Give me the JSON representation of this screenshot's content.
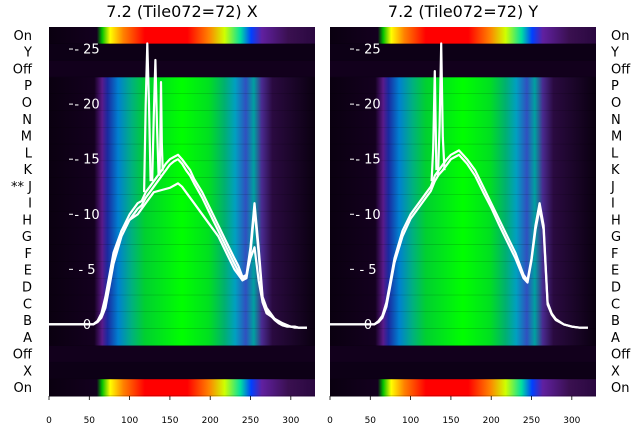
{
  "chart_data": [
    {
      "type": "heatmap",
      "title": "7.2 (Tile072=72) X",
      "xlim": [
        0,
        330
      ],
      "xticks": [
        0,
        50,
        100,
        150,
        200,
        250,
        300
      ],
      "row_labels_left": [
        "On",
        "Y",
        "Off",
        "P",
        "O",
        "N",
        "M",
        "L",
        "K",
        "** J",
        "I",
        "H",
        "G",
        "F",
        "E",
        "D",
        "C",
        "B",
        "A",
        "Off",
        "X",
        "On"
      ],
      "ylim": [
        -6.5,
        27
      ],
      "yticks": [
        0,
        5,
        10,
        15,
        20,
        25
      ],
      "line_series": [
        {
          "x": [
            0,
            55,
            60,
            65,
            70,
            75,
            80,
            90,
            100,
            110,
            115,
            120,
            125,
            130,
            135,
            140,
            145,
            150,
            155,
            160,
            165,
            170,
            175,
            180,
            190,
            200,
            210,
            220,
            230,
            235,
            240,
            245,
            250,
            255,
            260,
            265,
            270,
            275,
            280,
            285,
            290,
            295,
            300,
            305,
            310,
            315,
            320
          ],
          "y": [
            0,
            0,
            0.3,
            0.8,
            2,
            4,
            6,
            8.5,
            10,
            11,
            11.2,
            12,
            12.5,
            13,
            13.5,
            14,
            14.6,
            15,
            15.2,
            15.4,
            15,
            14.5,
            14,
            13.2,
            12,
            10.5,
            9,
            7.5,
            6,
            5.3,
            4.3,
            4.5,
            7,
            11,
            7,
            2.5,
            1.5,
            1,
            0.5,
            0.2,
            0,
            -0.1,
            -0.2,
            -0.2,
            -0.3,
            -0.3,
            -0.3
          ]
        },
        {
          "x": [
            0,
            55,
            60,
            65,
            70,
            75,
            80,
            90,
            100,
            110,
            115,
            120,
            125,
            130,
            135,
            140,
            145,
            150,
            155,
            160,
            165,
            170,
            175,
            180,
            190,
            200,
            210,
            220,
            230,
            235,
            240,
            245,
            250,
            255,
            260,
            265,
            270,
            275,
            280,
            285,
            290,
            295,
            300,
            305,
            310,
            315,
            320
          ],
          "y": [
            0,
            0,
            0.2,
            0.6,
            1.5,
            3.5,
            5.5,
            8,
            9.5,
            10.5,
            10.8,
            11.5,
            12,
            12.5,
            13,
            13.5,
            14,
            14.5,
            14.8,
            15,
            14.6,
            14,
            13.5,
            12.8,
            11.5,
            10,
            8.5,
            7,
            5.5,
            4.8,
            4,
            4.2,
            6.5,
            10.5,
            6.5,
            2.2,
            1.2,
            0.8,
            0.4,
            0.1,
            -0.1,
            -0.2,
            -0.2,
            -0.3,
            -0.3,
            -0.3,
            -0.3
          ]
        },
        {
          "x": [
            0,
            55,
            60,
            65,
            70,
            75,
            80,
            90,
            100,
            110,
            120,
            130,
            140,
            150,
            160,
            165,
            170,
            180,
            190,
            200,
            210,
            220,
            230,
            240,
            245,
            250,
            255,
            260,
            265,
            270,
            280,
            290,
            300,
            310,
            320
          ],
          "y": [
            0,
            0,
            0.3,
            1,
            2.5,
            4.5,
            6.5,
            8.5,
            9.5,
            10,
            11,
            12,
            12.2,
            12.4,
            12.8,
            12.5,
            12,
            11,
            10,
            9,
            8,
            6.5,
            5,
            4,
            4.5,
            6,
            7,
            4,
            2,
            1,
            0.5,
            0.1,
            -0.2,
            -0.3,
            -0.3
          ]
        },
        {
          "x": [
            118,
            120,
            122,
            124,
            126
          ],
          "y": [
            12,
            20,
            25.5,
            20,
            13
          ]
        },
        {
          "x": [
            128,
            130,
            132,
            134,
            136
          ],
          "y": [
            13,
            19,
            24,
            18,
            13.5
          ]
        },
        {
          "x": [
            137,
            138,
            139,
            140,
            141,
            142
          ],
          "y": [
            13.5,
            16,
            22,
            16.5,
            14,
            14
          ]
        }
      ]
    },
    {
      "type": "heatmap",
      "title": "7.2 (Tile072=72) Y",
      "xlim": [
        0,
        330
      ],
      "xticks": [
        0,
        50,
        100,
        150,
        200,
        250,
        300
      ],
      "row_labels_right": [
        "On",
        "Y",
        "Off",
        "P",
        "O",
        "N",
        "M",
        "L",
        "K",
        "J",
        "I",
        "H",
        "G",
        "F",
        "E",
        "D",
        "C",
        "B",
        "A",
        "Off",
        "X",
        "On"
      ],
      "ylim": [
        -6.5,
        27
      ],
      "yticks": [
        0,
        5,
        10,
        15,
        20,
        25
      ],
      "line_series": [
        {
          "x": [
            0,
            55,
            60,
            65,
            70,
            75,
            80,
            90,
            100,
            110,
            120,
            125,
            130,
            135,
            140,
            145,
            150,
            155,
            160,
            165,
            170,
            180,
            190,
            200,
            210,
            220,
            230,
            240,
            245,
            250,
            255,
            260,
            265,
            270,
            275,
            280,
            290,
            300,
            310,
            320
          ],
          "y": [
            0,
            0,
            0.3,
            0.8,
            2,
            4,
            6,
            8.5,
            10,
            11,
            12,
            12.5,
            13.5,
            14,
            14.5,
            15,
            15.4,
            15.6,
            15.8,
            15.4,
            15,
            14,
            12.5,
            11,
            9.5,
            8,
            6.5,
            4.5,
            4,
            6,
            9,
            11,
            9,
            2,
            1,
            0.5,
            0,
            -0.2,
            -0.3,
            -0.3
          ]
        },
        {
          "x": [
            0,
            55,
            60,
            65,
            70,
            75,
            80,
            90,
            100,
            110,
            120,
            125,
            130,
            135,
            140,
            145,
            150,
            155,
            160,
            165,
            170,
            180,
            190,
            200,
            210,
            220,
            230,
            240,
            245,
            250,
            255,
            260,
            265,
            270,
            275,
            280,
            290,
            300,
            310,
            320
          ],
          "y": [
            0,
            0,
            0.2,
            0.6,
            1.6,
            3.6,
            5.6,
            8,
            9.6,
            10.6,
            11.6,
            12.1,
            13,
            13.6,
            14,
            14.5,
            15,
            15.2,
            15.4,
            15,
            14.6,
            13.5,
            12,
            10.6,
            9,
            7.5,
            6,
            4.2,
            3.8,
            5.8,
            8.6,
            10.5,
            8.6,
            1.8,
            0.9,
            0.4,
            0,
            -0.2,
            -0.3,
            -0.3
          ]
        },
        {
          "x": [
            126,
            128,
            130,
            132
          ],
          "y": [
            13,
            16,
            23,
            14
          ]
        },
        {
          "x": [
            134,
            136,
            138,
            140,
            142
          ],
          "y": [
            13.5,
            18,
            25.5,
            17,
            14
          ]
        }
      ]
    }
  ]
}
